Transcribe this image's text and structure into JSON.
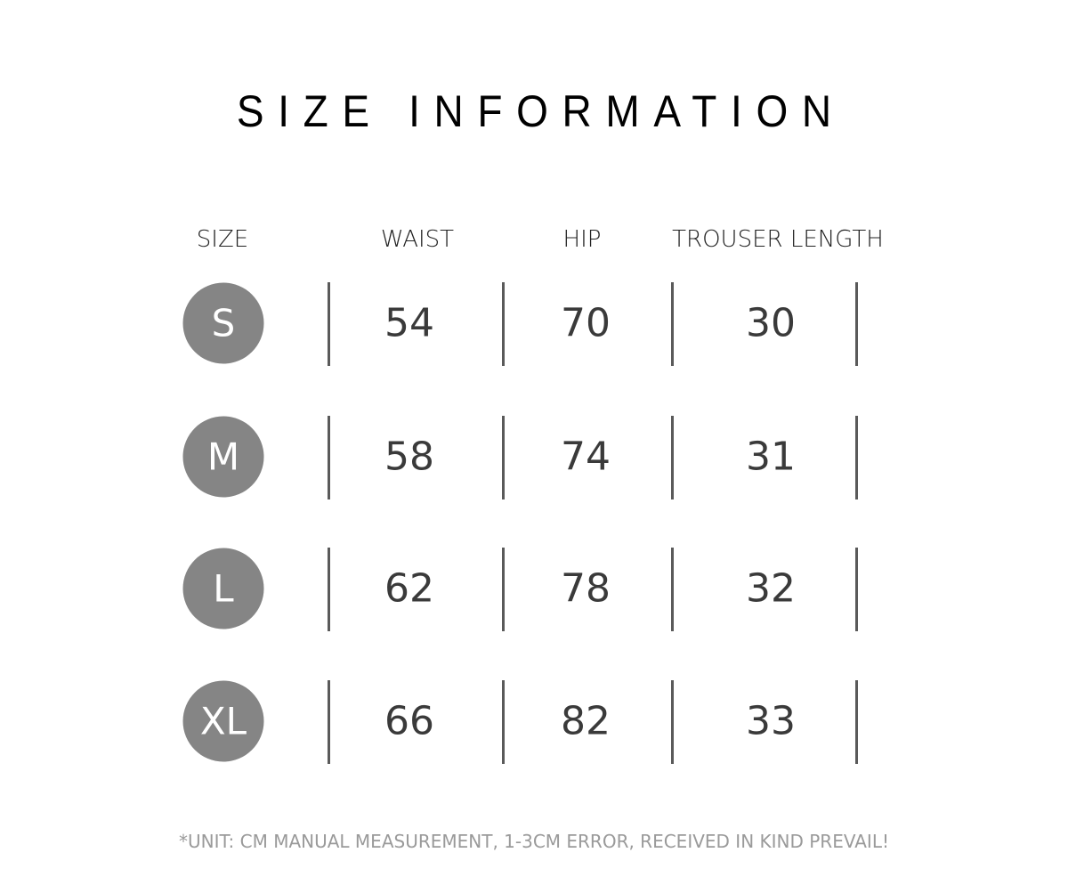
{
  "title": "SIZE INFORMATION",
  "headers": [
    "SIZE",
    "WAIST",
    "HIP",
    "TROUSER LENGTH"
  ],
  "rows": [
    {
      "size": "S",
      "waist": "54",
      "hip": "70",
      "length": "30"
    },
    {
      "size": "M",
      "waist": "58",
      "hip": "74",
      "length": "31"
    },
    {
      "size": "L",
      "waist": "62",
      "hip": "78",
      "length": "32"
    },
    {
      "size": "XL",
      "waist": "66",
      "hip": "82",
      "length": "33"
    }
  ],
  "footer": "*UNIT: CM MANUAL MEASUREMENT, 1-3CM ERROR, RECEIVED IN KIND PREVAIL!",
  "colors": {
    "circle": "#858585",
    "footer_text": "#9a9a9a",
    "divider": "#5a5a5a"
  }
}
